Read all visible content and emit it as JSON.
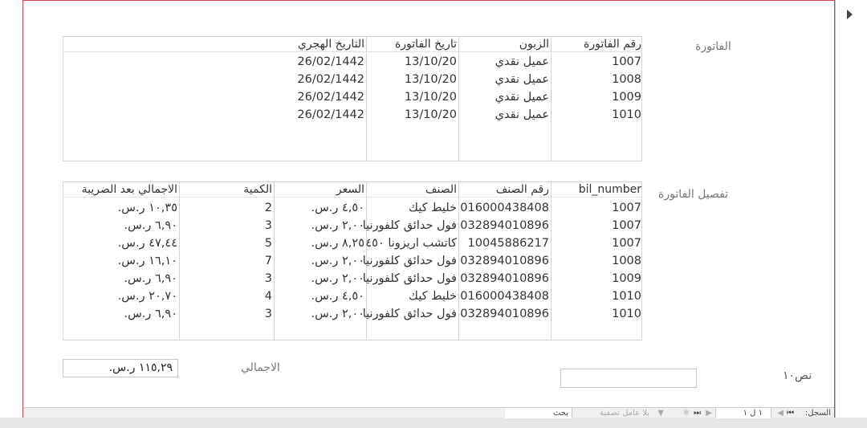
{
  "labels": {
    "invoice": "الفاتورة",
    "invoice_details": "تفصيل الفاتورة",
    "total": "الاجمالي",
    "text10": "نص١٠"
  },
  "invoices": {
    "headers": [
      "رقم الفاتورة",
      "الزبون",
      "تاريخ الفاتورة",
      "التاريخ الهجري"
    ],
    "rows": [
      [
        "1007",
        "عميل نقدي",
        "13/10/20",
        "26/02/1442"
      ],
      [
        "1008",
        "عميل نقدي",
        "13/10/20",
        "26/02/1442"
      ],
      [
        "1009",
        "عميل نقدي",
        "13/10/20",
        "26/02/1442"
      ],
      [
        "1010",
        "عميل نقدي",
        "13/10/20",
        "26/02/1442"
      ]
    ]
  },
  "details": {
    "headers": [
      "bil_number",
      "رقم الصنف",
      "الصنف",
      "السعر",
      "الكمية",
      "الاجمالي بعد الضريبة"
    ],
    "rows": [
      [
        "1007",
        "016000438408",
        "خليط كيك",
        "٤,٥٠ ر.س.",
        "2",
        "١٠,٣٥ ر.س."
      ],
      [
        "1007",
        "032894010896",
        "فول حدائق كلفورنيا",
        "٢,٠٠ ر.س.",
        "3",
        "٦,٩٠ ر.س."
      ],
      [
        "1007",
        "10045886217",
        "كاتشب اريزونا ٤٥٠",
        "٨,٢٥ ر.س.",
        "5",
        "٤٧,٤٤ ر.س."
      ],
      [
        "1008",
        "032894010896",
        "فول حدائق كلفورنيا",
        "٢,٠٠ ر.س.",
        "7",
        "١٦,١٠ ر.س."
      ],
      [
        "1009",
        "032894010896",
        "فول حدائق كلفورنيا",
        "٢,٠٠ ر.س.",
        "3",
        "٦,٩٠ ر.س."
      ],
      [
        "1010",
        "016000438408",
        "خليط كيك",
        "٤,٥٠ ر.س.",
        "4",
        "٢٠,٧٠ ر.س."
      ],
      [
        "1010",
        "032894010896",
        "فول حدائق كلفورنيا",
        "٢,٠٠ ر.س.",
        "3",
        "٦,٩٠ ر.س."
      ]
    ]
  },
  "total_value": "١١٥,٢٩ ر.س.",
  "text10_value": "",
  "navigation": {
    "record_label": "السجل:",
    "record_position": "١ ل ١",
    "filter_label": "بلا عامل تصفية",
    "search_placeholder": "بحث"
  },
  "colors": {
    "frame_border": "#c8454a"
  }
}
